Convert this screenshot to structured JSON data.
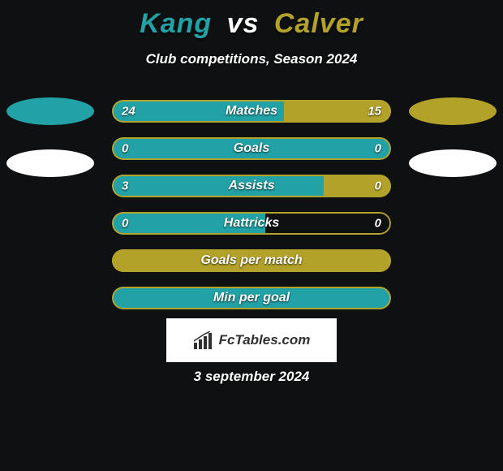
{
  "colors": {
    "background": "#0f1011",
    "player1": "#22a2a6",
    "player2": "#b3a22a",
    "white": "#ffffff",
    "logo_box_bg": "#ffffff",
    "logo_text": "#303030"
  },
  "fonts": {
    "title_size": 34,
    "subtitle_size": 17,
    "row_label_size": 16,
    "row_value_size": 15,
    "date_size": 17
  },
  "header": {
    "player1": "Kang",
    "vs": "vs",
    "player2": "Calver",
    "subtitle": "Club competitions, Season 2024"
  },
  "ellipses": {
    "left": [
      {
        "color": "#22a2a6"
      },
      {
        "color": "#ffffff"
      }
    ],
    "right": [
      {
        "color": "#b3a22a"
      },
      {
        "color": "#ffffff"
      }
    ]
  },
  "stat_rows": [
    {
      "label": "Matches",
      "left_value": "24",
      "right_value": "15",
      "left_fill_pct": 61.5,
      "right_fill_pct": 38.5,
      "left_fill_color": "#22a2a6",
      "right_fill_color": "#b3a22a",
      "border_color": "#b3a22a",
      "show_values": true
    },
    {
      "label": "Goals",
      "left_value": "0",
      "right_value": "0",
      "left_fill_pct": 100,
      "right_fill_pct": 0,
      "left_fill_color": "#22a2a6",
      "right_fill_color": "#b3a22a",
      "border_color": "#b3a22a",
      "show_values": true
    },
    {
      "label": "Assists",
      "left_value": "3",
      "right_value": "0",
      "left_fill_pct": 76,
      "right_fill_pct": 24,
      "left_fill_color": "#22a2a6",
      "right_fill_color": "#b3a22a",
      "border_color": "#b3a22a",
      "show_values": true
    },
    {
      "label": "Hattricks",
      "left_value": "0",
      "right_value": "0",
      "left_fill_pct": 55,
      "right_fill_pct": 0,
      "left_fill_color": "#22a2a6",
      "right_fill_color": "#b3a22a",
      "border_color": "#b3a22a",
      "show_values": true
    },
    {
      "label": "Goals per match",
      "left_value": "",
      "right_value": "",
      "left_fill_pct": 0,
      "right_fill_pct": 100,
      "left_fill_color": "#22a2a6",
      "right_fill_color": "#b3a22a",
      "border_color": "#b3a22a",
      "show_values": false
    },
    {
      "label": "Min per goal",
      "left_value": "",
      "right_value": "",
      "left_fill_pct": 100,
      "right_fill_pct": 0,
      "left_fill_color": "#22a2a6",
      "right_fill_color": "#b3a22a",
      "border_color": "#b3a22a",
      "show_values": false
    }
  ],
  "logo": {
    "text": "FcTables.com",
    "bar_color": "#303030"
  },
  "date": "3 september 2024"
}
